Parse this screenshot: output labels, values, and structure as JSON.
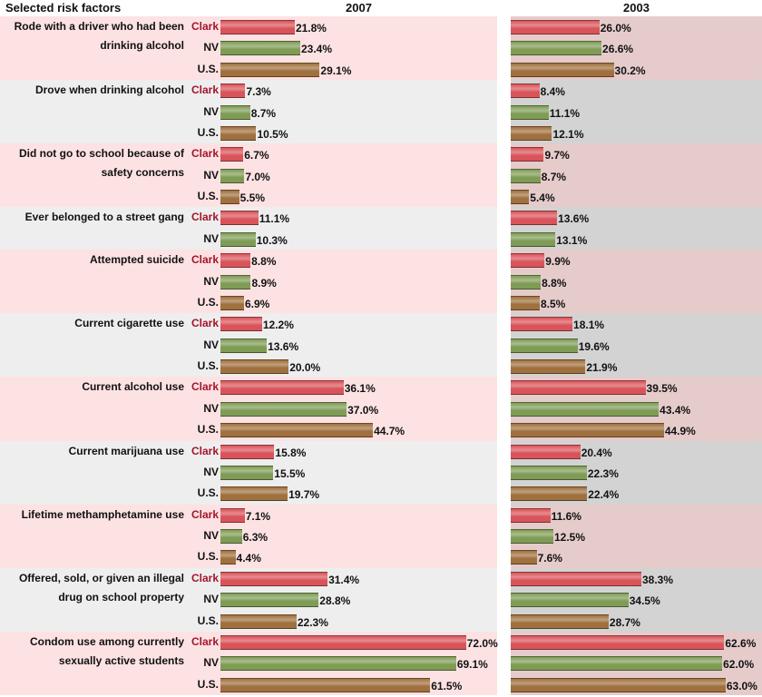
{
  "chart_data": {
    "type": "grouped-hbar",
    "header": "Selected risk factors",
    "categories": [
      "Rode with a driver who had been drinking alcohol",
      "Drove when drinking alcohol",
      "Did not go to school because of safety concerns",
      "Ever belonged to a street gang",
      "Attempted suicide",
      "Current cigarette use",
      "Current alcohol use",
      "Current marijuana use",
      "Lifetime methamphetamine use",
      "Offered, sold, or given an illegal drug on school property",
      "Condom use among currently sexually active students"
    ],
    "xlim": [
      0,
      75
    ],
    "panels": [
      {
        "title": "2007",
        "series": [
          {
            "name": "Clark",
            "color": "#d9545a",
            "values": [
              21.8,
              7.3,
              6.7,
              11.1,
              8.8,
              12.2,
              36.1,
              15.8,
              7.1,
              31.4,
              72.0
            ],
            "value_labels": [
              "21.8%",
              "7.3%",
              "6.7%",
              "11.1%",
              "8.8%",
              "12.2%",
              "36.1%",
              "15.8%",
              "7.1%",
              "31.4%",
              "72.0%"
            ]
          },
          {
            "name": "NV",
            "color": "#7f9c55",
            "values": [
              23.4,
              8.7,
              7.0,
              10.3,
              8.9,
              13.6,
              37.0,
              15.5,
              6.3,
              28.8,
              69.1
            ],
            "value_labels": [
              "23.4%",
              "8.7%",
              "7.0%",
              "10.3%",
              "8.9%",
              "13.6%",
              "37.0%",
              "15.5%",
              "6.3%",
              "28.8%",
              "69.1%"
            ]
          },
          {
            "name": "U.S.",
            "color": "#a0703e",
            "values": [
              29.1,
              10.5,
              5.5,
              null,
              6.9,
              20.0,
              44.7,
              19.7,
              4.4,
              22.3,
              61.5
            ],
            "value_labels": [
              "29.1%",
              "10.5%",
              "5.5%",
              null,
              "6.9%",
              "20.0%",
              "44.7%",
              "19.7%",
              "4.4%",
              "22.3%",
              "61.5%"
            ]
          }
        ]
      },
      {
        "title": "2003",
        "series": [
          {
            "name": "Clark",
            "color": "#d9545a",
            "values": [
              26.0,
              8.4,
              9.7,
              13.6,
              9.9,
              18.1,
              39.5,
              20.4,
              11.6,
              38.3,
              62.6
            ],
            "value_labels": [
              "26.0%",
              "8.4%",
              "9.7%",
              "13.6%",
              "9.9%",
              "18.1%",
              "39.5%",
              "20.4%",
              "11.6%",
              "38.3%",
              "62.6%"
            ]
          },
          {
            "name": "NV",
            "color": "#7f9c55",
            "values": [
              26.6,
              11.1,
              8.7,
              13.1,
              8.8,
              19.6,
              43.4,
              22.3,
              12.5,
              34.5,
              62.0
            ],
            "value_labels": [
              "26.6%",
              "11.1%",
              "8.7%",
              "13.1%",
              "8.8%",
              "19.6%",
              "43.4%",
              "22.3%",
              "12.5%",
              "34.5%",
              "62.0%"
            ]
          },
          {
            "name": "U.S.",
            "color": "#a0703e",
            "values": [
              30.2,
              12.1,
              5.4,
              null,
              8.5,
              21.9,
              44.9,
              22.4,
              7.6,
              28.7,
              63.0
            ],
            "value_labels": [
              "30.2%",
              "12.1%",
              "5.4%",
              null,
              "8.5%",
              "21.9%",
              "44.9%",
              "22.4%",
              "7.6%",
              "28.7%",
              "63.0%"
            ]
          }
        ]
      }
    ]
  }
}
